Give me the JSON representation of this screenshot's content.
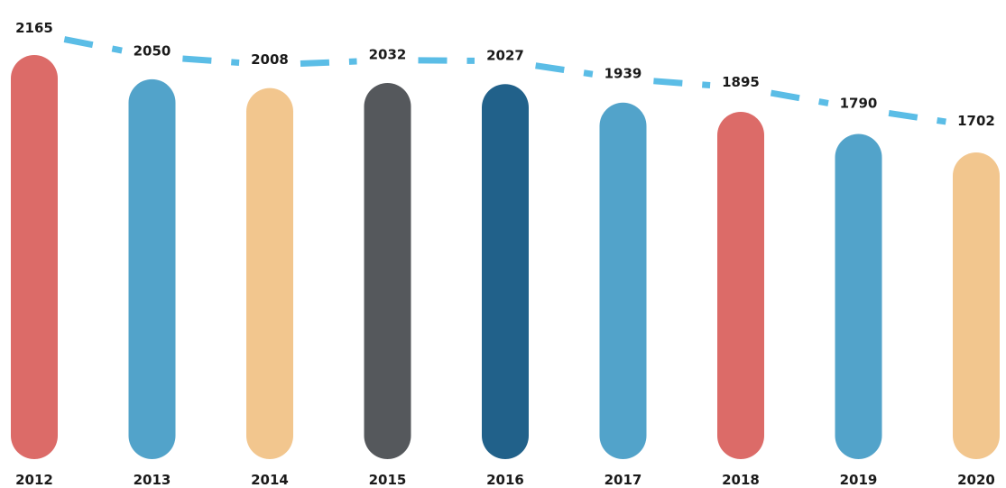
{
  "chart_data": {
    "type": "bar",
    "categories": [
      "2012",
      "2013",
      "2014",
      "2015",
      "2016",
      "2017",
      "2018",
      "2019",
      "2020"
    ],
    "values": [
      2165,
      2050,
      2008,
      2032,
      2027,
      1939,
      1895,
      1790,
      1702
    ],
    "bar_colors": [
      "#dc6b68",
      "#52a3ca",
      "#f2c68e",
      "#55585c",
      "#21618a",
      "#52a3ca",
      "#dc6b68",
      "#52a3ca",
      "#f2c68e"
    ],
    "trend_line": {
      "style": "dashed",
      "color": "#5bbde6"
    },
    "title": "",
    "xlabel": "",
    "ylabel": "",
    "grid": false,
    "legend": "none"
  }
}
